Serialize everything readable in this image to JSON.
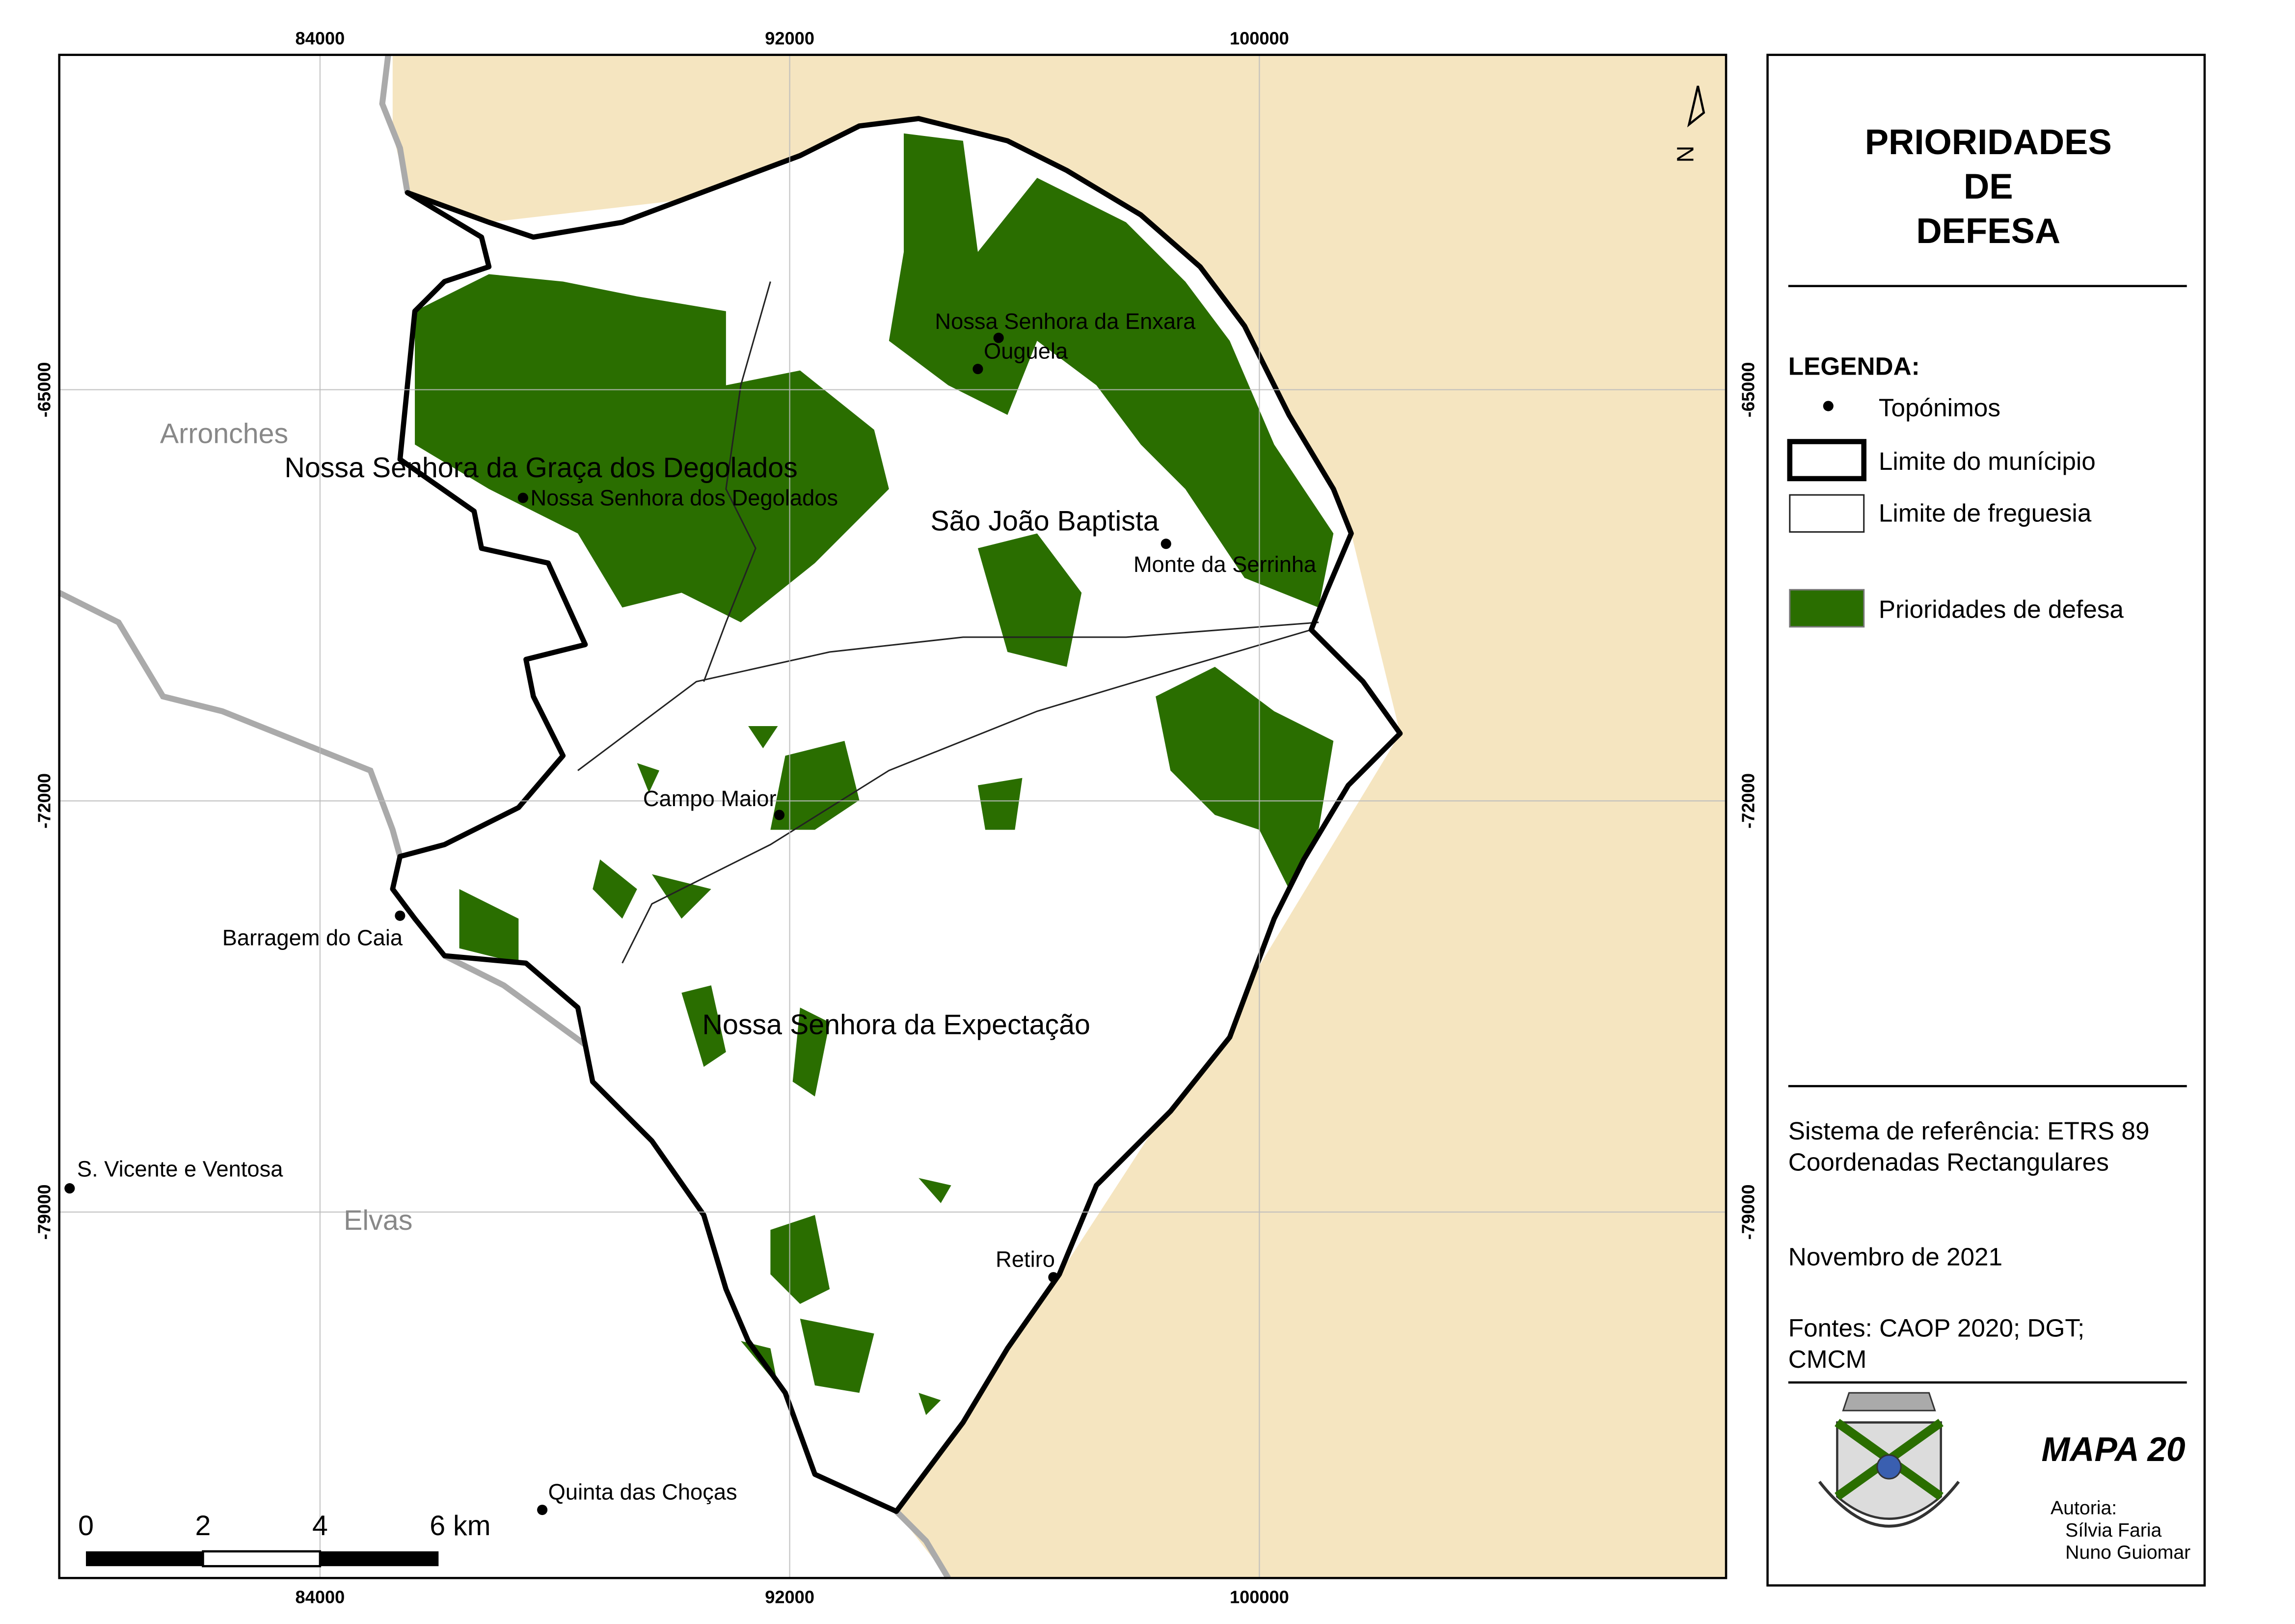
{
  "map": {
    "grid": {
      "x_labels": [
        84000,
        92000,
        100000
      ],
      "y_labels": [
        -65000,
        -72000,
        -79000
      ]
    },
    "places": [
      "Arronches",
      "Nossa Senhora da Graça dos Degolados",
      "Nossa Senhora dos Degolados",
      "Nossa Senhora da Enxara",
      "Ouguela",
      "São João Baptista",
      "Monte da Serrinha",
      "Campo Maior",
      "Barragem do Caia",
      "Nossa Senhora da Expectação",
      "S. Vicente e Ventosa",
      "Elvas",
      "Retiro",
      "Quinta das Choças"
    ],
    "scale_bar": [
      "0",
      "2",
      "4",
      "6 km"
    ],
    "north": "N"
  },
  "panel": {
    "title": [
      "PRIORIDADES",
      "DE",
      "DEFESA"
    ],
    "legend_title": "LEGENDA:",
    "legend": [
      "Topónimos",
      "Limite do munícipio",
      "Limite de freguesia",
      "Prioridades de defesa"
    ],
    "reference": [
      "Sistema de referência: ETRS 89",
      "Coordenadas Rectangulares"
    ],
    "date": "Novembro de 2021",
    "sources": [
      "Fontes: CAOP 2020; DGT;",
      "CMCM"
    ],
    "map_id": "MAPA 20",
    "author_label": "Autoria:",
    "authors": [
      "Sílvia Faria",
      "Nuno Guiomar"
    ]
  }
}
